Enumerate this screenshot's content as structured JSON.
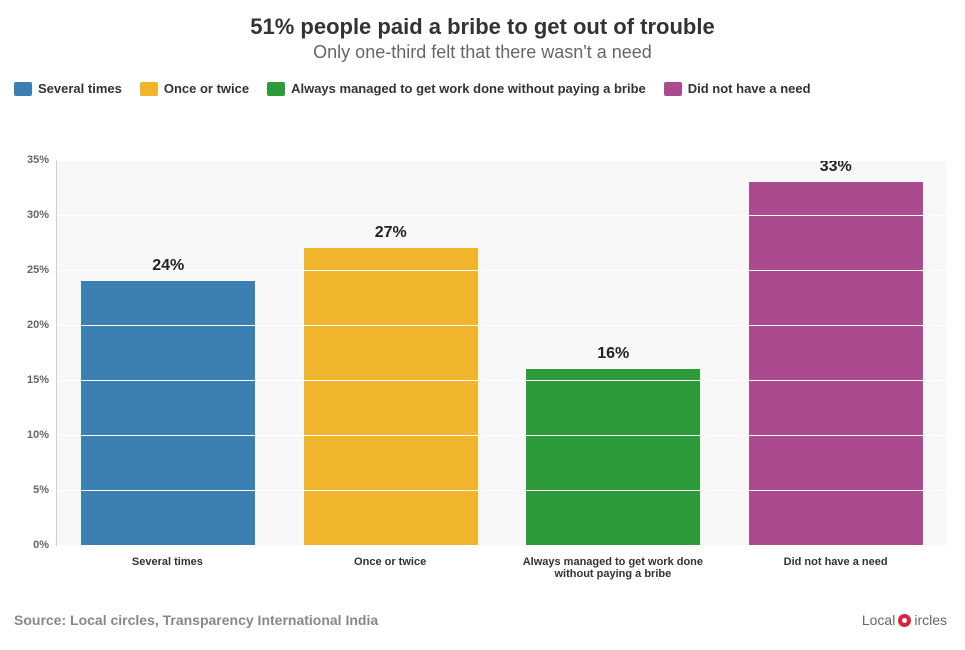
{
  "chart": {
    "type": "bar",
    "title": "51% people paid a bribe to get out of trouble",
    "subtitle": "Only one-third felt that there wasn't a need",
    "title_fontsize": 22,
    "subtitle_fontsize": 18,
    "title_color": "#333333",
    "subtitle_color": "#666666",
    "background_color": "#ffffff",
    "plot_background": "#f8f8f8",
    "grid_color": "#ffffff",
    "axis_color": "#d0d0d0",
    "tick_label_color": "#666666",
    "ylim": [
      0,
      35
    ],
    "ytick_step": 5,
    "ytick_suffix": "%",
    "bar_width_pct": 78,
    "bar_label_fontsize": 16,
    "bar_label_color": "#222222",
    "xtick_fontsize": 11,
    "legend_fontsize": 13,
    "categories": [
      "Several times",
      "Once or twice",
      "Always managed to get work done without paying a bribe",
      "Did not have a need"
    ],
    "values": [
      24,
      27,
      16,
      33
    ],
    "bar_colors": [
      "#3c7fb1",
      "#f0b52c",
      "#2e9b3b",
      "#ab4a8e"
    ],
    "value_suffix": "%"
  },
  "legend": {
    "items": [
      {
        "label": "Several times",
        "color": "#3c7fb1"
      },
      {
        "label": "Once or twice",
        "color": "#f0b52c"
      },
      {
        "label": "Always managed to get work done without paying a bribe",
        "color": "#2e9b3b"
      },
      {
        "label": "Did not have a need",
        "color": "#ab4a8e"
      }
    ]
  },
  "footer": {
    "source": "Source: Local circles, Transparency International India",
    "source_fontsize": 14,
    "source_color": "#888888",
    "brand_prefix": "Local",
    "brand_suffix": "ircles",
    "brand_accent_color": "#d7263d",
    "brand_text_color": "#666666"
  }
}
